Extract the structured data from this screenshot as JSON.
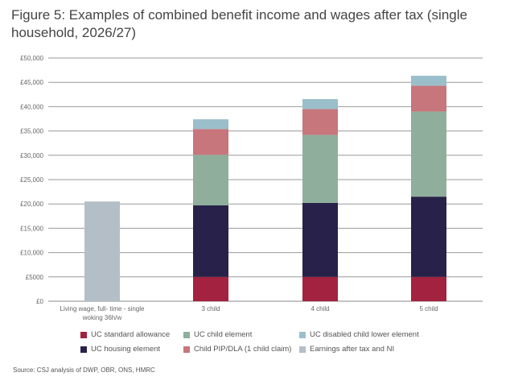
{
  "chart_data": {
    "type": "bar",
    "stacked": true,
    "title": "Figure 5: Examples of combined benefit income and wages after tax (single household, 2026/27)",
    "xlabel": "",
    "ylabel": "",
    "ylim": [
      0,
      50000
    ],
    "yticks": [
      0,
      5000,
      10000,
      15000,
      20000,
      25000,
      30000,
      35000,
      40000,
      45000,
      50000
    ],
    "ytick_labels": [
      "£0",
      "£5000",
      "£10,000",
      "£15,000",
      "£20,000",
      "£25,000",
      "£30,000",
      "£35,000",
      "£40,000",
      "£45,000",
      "£50,000"
    ],
    "grid": true,
    "legend_placement": "bottom",
    "categories": [
      "Living wage, full- time - single woking 36h/w",
      "3 child",
      "4 child",
      "5 child"
    ],
    "category_lines": [
      [
        "Living wage, full- time - single",
        "woking 36h/w"
      ],
      [
        "3 child"
      ],
      [
        "4 child"
      ],
      [
        "5 child"
      ]
    ],
    "series": [
      {
        "name": "UC standard allowance",
        "color": "#a3223f",
        "values": [
          0,
          5000,
          5000,
          5000
        ]
      },
      {
        "name": "UC housing element",
        "color": "#28224a",
        "values": [
          0,
          14700,
          15200,
          16500
        ]
      },
      {
        "name": "UC child element",
        "color": "#8fae9c",
        "values": [
          0,
          10400,
          14000,
          17500
        ]
      },
      {
        "name": "Child PIP/DLA (1 child claim)",
        "color": "#c7767b",
        "values": [
          0,
          5300,
          5300,
          5300
        ]
      },
      {
        "name": "UC disabled child lower element",
        "color": "#9abfca",
        "values": [
          0,
          2000,
          2050,
          2050
        ]
      },
      {
        "name": "Earnings after tax and NI",
        "color": "#b3bec6",
        "values": [
          20500,
          0,
          0,
          0
        ]
      }
    ],
    "legend_order": [
      0,
      2,
      4,
      1,
      3,
      5
    ]
  },
  "source": "Source:  CSJ analysis of DWP, OBR, ONS, HMRC"
}
